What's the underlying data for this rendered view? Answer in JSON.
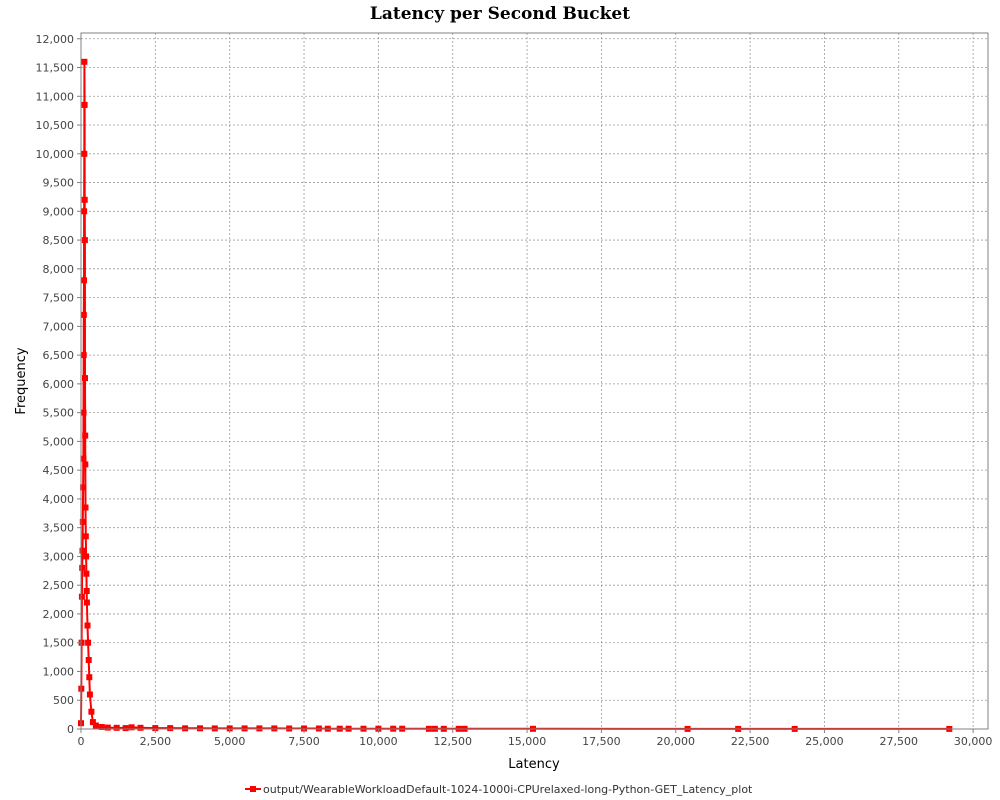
{
  "chart_data": {
    "type": "line",
    "title": "Latency per Second Bucket",
    "xlabel": "Latency",
    "ylabel": "Frequency",
    "xlim": [
      0,
      30500
    ],
    "ylim": [
      0,
      12100
    ],
    "x_ticks": [
      "0",
      "2,500",
      "5,000",
      "7,500",
      "10,000",
      "12,500",
      "15,000",
      "17,500",
      "20,000",
      "22,500",
      "25,000",
      "27,500",
      "30,000"
    ],
    "x_tick_values": [
      0,
      2500,
      5000,
      7500,
      10000,
      12500,
      15000,
      17500,
      20000,
      22500,
      25000,
      27500,
      30000
    ],
    "y_ticks": [
      "0",
      "500",
      "1,000",
      "1,500",
      "2,000",
      "2,500",
      "3,000",
      "3,500",
      "4,000",
      "4,500",
      "5,000",
      "5,500",
      "6,000",
      "6,500",
      "7,000",
      "7,500",
      "8,000",
      "8,500",
      "9,000",
      "9,500",
      "10,000",
      "10,500",
      "11,000",
      "11,500",
      "12,000"
    ],
    "y_tick_values": [
      0,
      500,
      1000,
      1500,
      2000,
      2500,
      3000,
      3500,
      4000,
      4500,
      5000,
      5500,
      6000,
      6500,
      7000,
      7500,
      8000,
      8500,
      9000,
      9500,
      10000,
      10500,
      11000,
      11500,
      12000
    ],
    "grid": true,
    "legend_position": "bottom",
    "series": [
      {
        "name": "output/WearableWorkloadDefault-1024-1000i-CPUrelaxed-long-Python-GET_Latency_plot",
        "color": "#ff0000",
        "x": [
          0,
          10,
          20,
          30,
          40,
          50,
          60,
          70,
          80,
          85,
          90,
          95,
          100,
          105,
          110,
          115,
          120,
          125,
          130,
          135,
          140,
          145,
          150,
          160,
          170,
          180,
          190,
          200,
          220,
          240,
          260,
          280,
          300,
          350,
          400,
          500,
          700,
          900,
          1200,
          1500,
          1700,
          2000,
          2500,
          3000,
          3500,
          4000,
          4500,
          5000,
          5500,
          6000,
          6500,
          7000,
          7500,
          8000,
          8300,
          8700,
          9000,
          9500,
          10000,
          10500,
          10800,
          11700,
          11900,
          12200,
          12700,
          12900,
          15200,
          20400,
          22100,
          24000,
          29200
        ],
        "values": [
          100,
          700,
          1500,
          2300,
          2800,
          3100,
          3600,
          4200,
          4700,
          5500,
          6500,
          7200,
          7800,
          9000,
          10000,
          11600,
          10850,
          9200,
          8500,
          6100,
          5100,
          4600,
          3850,
          3350,
          3000,
          2700,
          2400,
          2200,
          1800,
          1500,
          1200,
          900,
          600,
          300,
          120,
          60,
          35,
          25,
          20,
          15,
          30,
          20,
          15,
          15,
          12,
          12,
          10,
          10,
          10,
          10,
          10,
          8,
          8,
          8,
          5,
          5,
          5,
          5,
          5,
          5,
          5,
          3,
          3,
          3,
          3,
          3,
          3,
          2,
          2,
          2,
          2
        ]
      }
    ]
  }
}
